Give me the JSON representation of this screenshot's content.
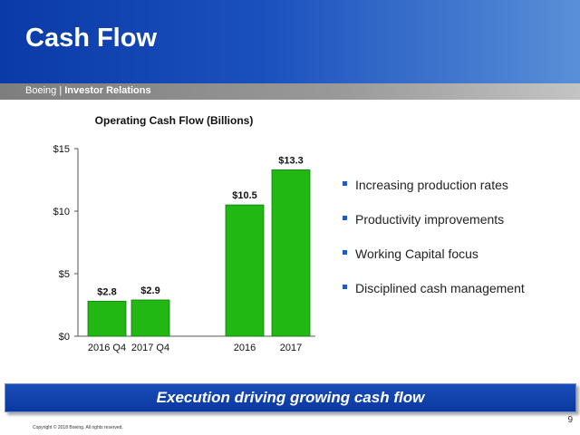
{
  "header": {
    "title": "Cash Flow"
  },
  "subbar": {
    "company": "Boeing",
    "separator": "|",
    "section": "Investor Relations"
  },
  "chart_data": {
    "type": "bar",
    "title": "Operating Cash Flow (Billions)",
    "categories": [
      "2016 Q4",
      "2017 Q4",
      "2016",
      "2017"
    ],
    "values": [
      2.8,
      2.9,
      10.5,
      13.3
    ],
    "data_labels": [
      "$2.8",
      "$2.9",
      "$10.5",
      "$13.3"
    ],
    "ylim": [
      0,
      15
    ],
    "yticks": [
      0,
      5,
      10,
      15
    ],
    "ytick_labels": [
      "$0",
      "$5",
      "$10",
      "$15"
    ],
    "xlabel": "",
    "ylabel": "",
    "grid": false,
    "legend": "none",
    "bar_color": "#22b814"
  },
  "bullets": [
    "Increasing production rates",
    "Productivity improvements",
    "Working Capital focus",
    "Disciplined cash management"
  ],
  "banner": {
    "text": "Execution driving growing cash flow"
  },
  "footer": {
    "page_number": "9",
    "copyright": "Copyright © 2018 Boeing. All rights reserved."
  },
  "colors": {
    "header_blue": "#0a3aa8",
    "bullet_blue": "#1f5bc4",
    "bar_green": "#22b814"
  }
}
